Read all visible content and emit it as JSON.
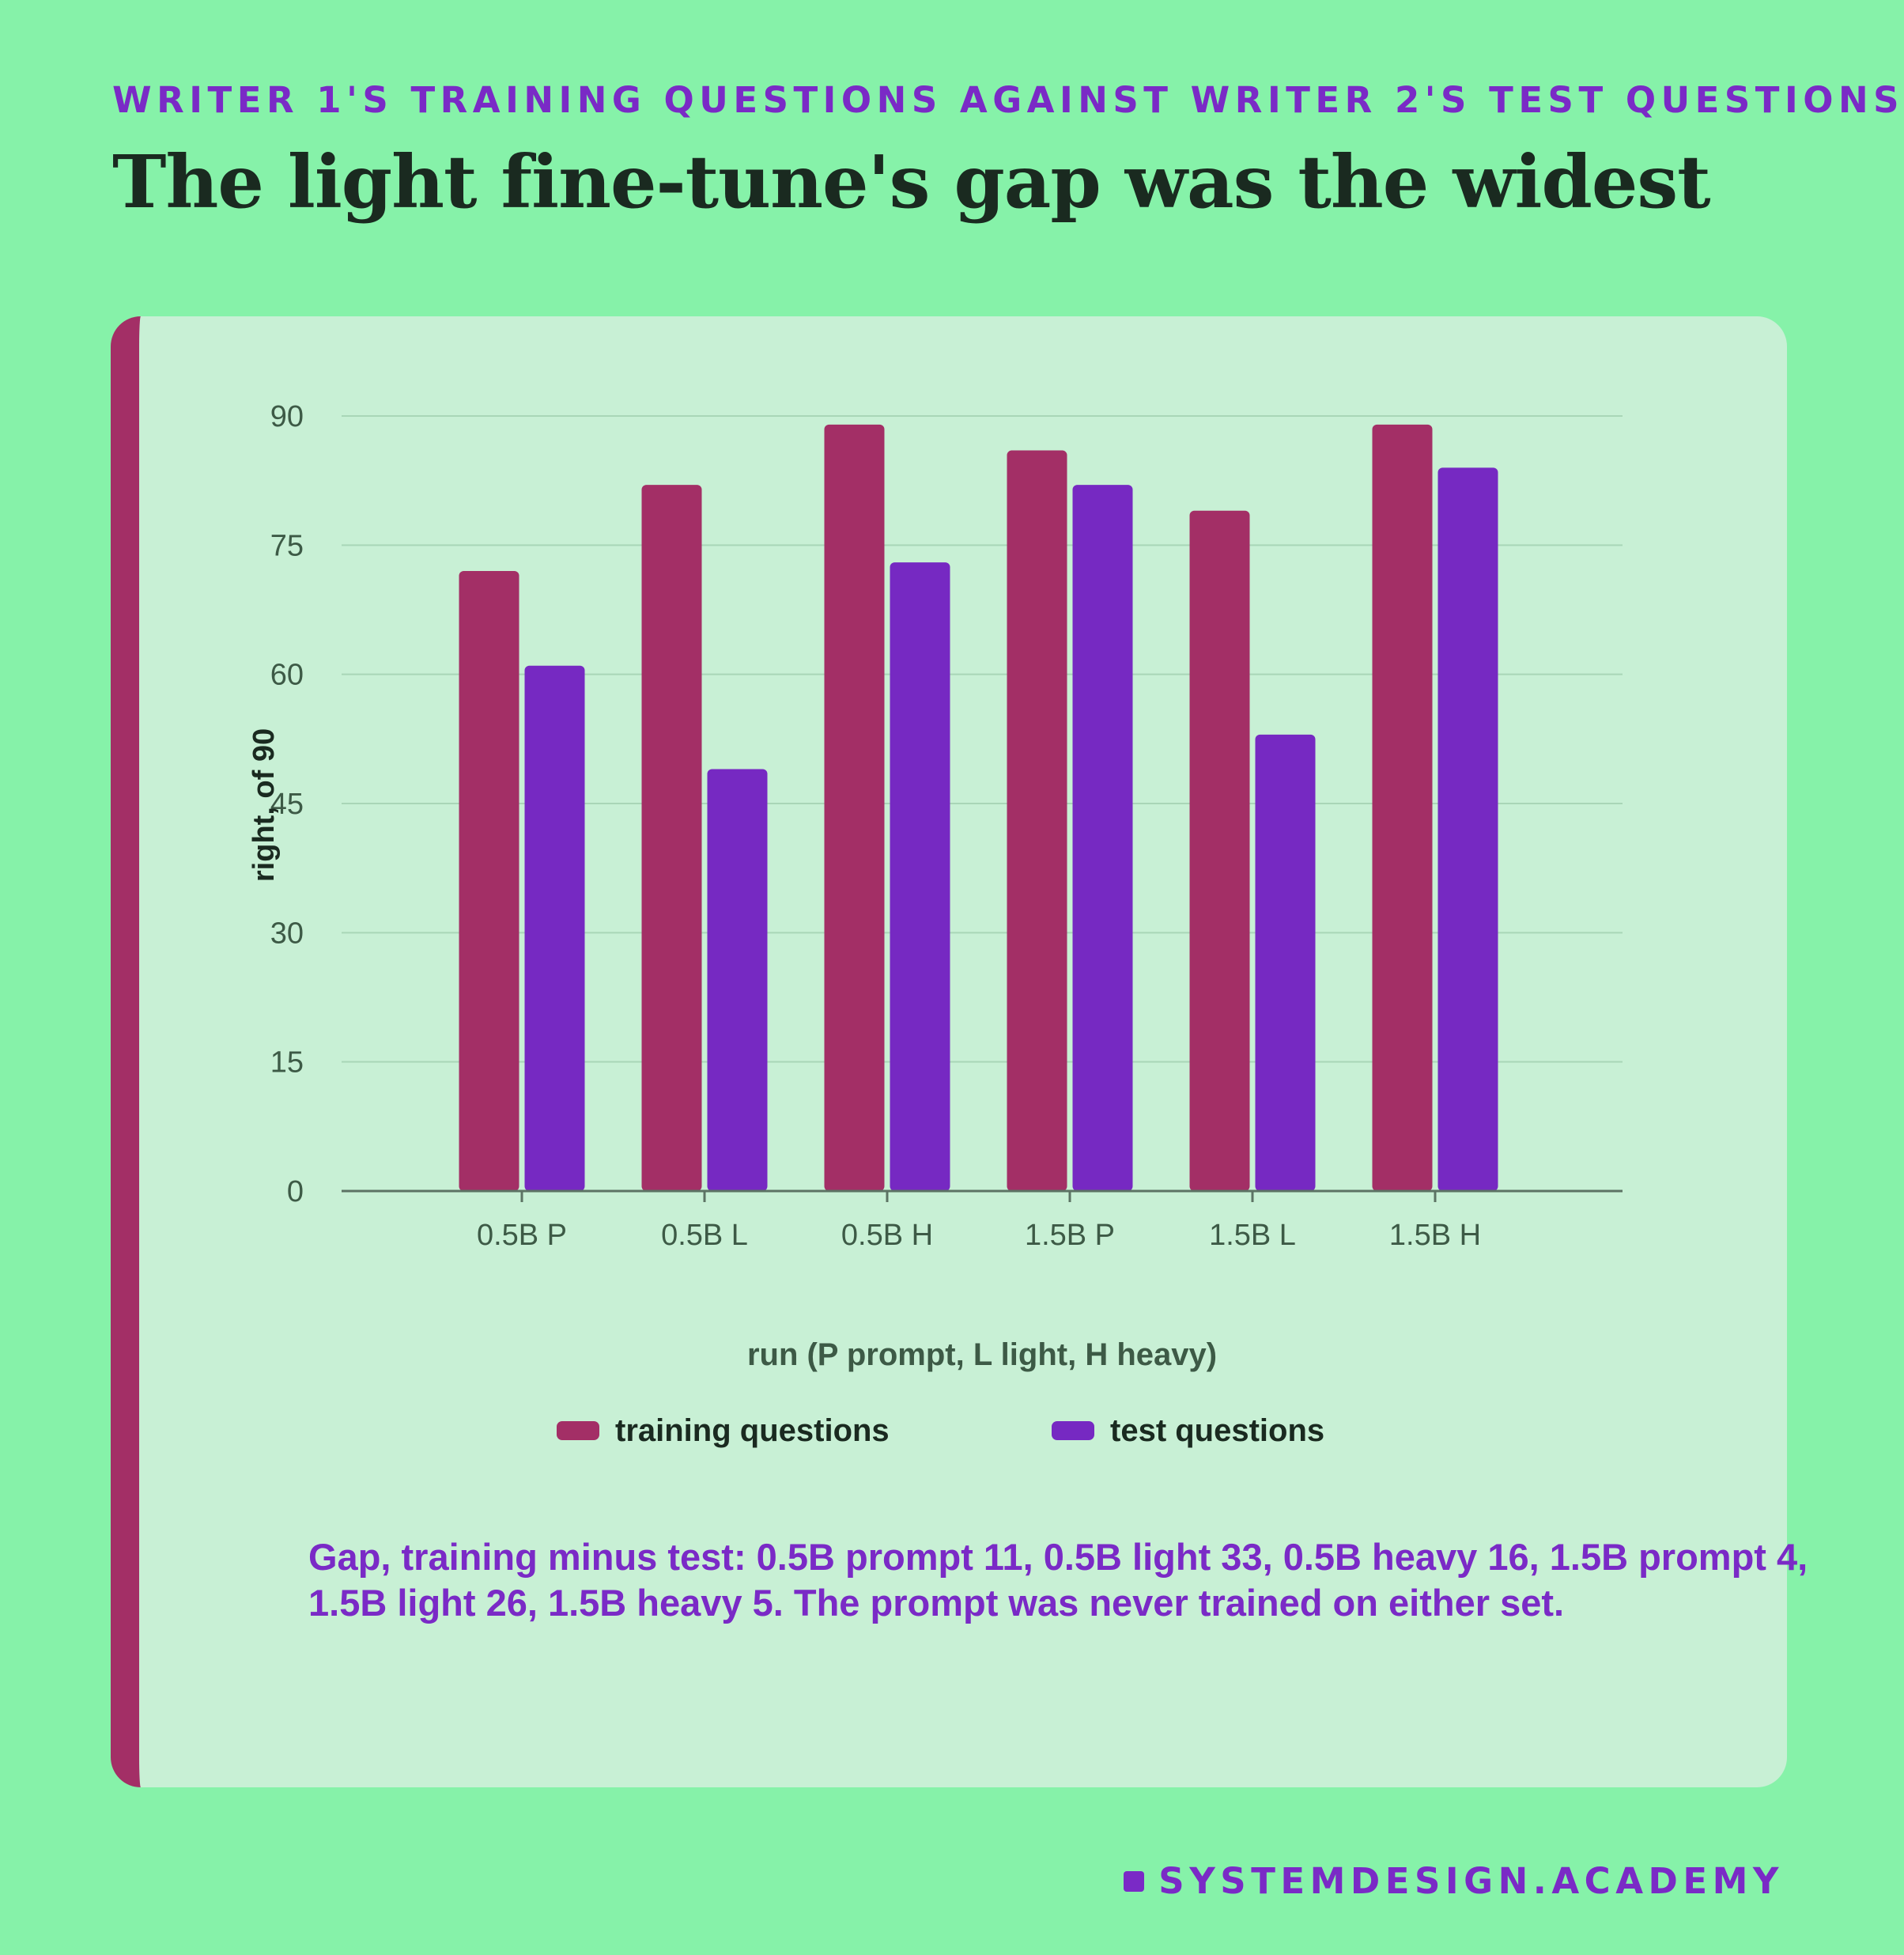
{
  "kicker": "WRITER 1'S TRAINING QUESTIONS AGAINST WRITER 2'S TEST QUESTIONS",
  "title": "The light fine-tune's gap was the widest",
  "note": "Gap, training minus test: 0.5B prompt 11, 0.5B light 33, 0.5B heavy 16, 1.5B prompt 4, 1.5B light 26, 1.5B heavy 5. The prompt was never trained on either set.",
  "brand": "SYSTEMDESIGN.ACADEMY",
  "colors": {
    "background": "#86f2a9",
    "card": "#c8f0d5",
    "accent": "#a32f66",
    "training": "#a32f66",
    "test": "#7629c2",
    "text": "#1a2a20"
  },
  "icons": {
    "brand": "square-bullet-icon"
  },
  "chart_data": {
    "type": "bar",
    "title": "",
    "xlabel": "run (P prompt, L light, H heavy)",
    "ylabel": "right, of 90",
    "categories": [
      "0.5B P",
      "0.5B L",
      "0.5B H",
      "1.5B P",
      "1.5B L",
      "1.5B H"
    ],
    "series": [
      {
        "name": "training questions",
        "color": "#a32f66",
        "values": [
          72,
          82,
          89,
          86,
          79,
          89
        ]
      },
      {
        "name": "test questions",
        "color": "#7629c2",
        "values": [
          61,
          49,
          73,
          82,
          53,
          84
        ]
      }
    ],
    "ylim": [
      0,
      90
    ],
    "yticks": [
      0,
      15,
      30,
      45,
      60,
      75,
      90
    ],
    "grid": true,
    "legend": "bottom"
  }
}
